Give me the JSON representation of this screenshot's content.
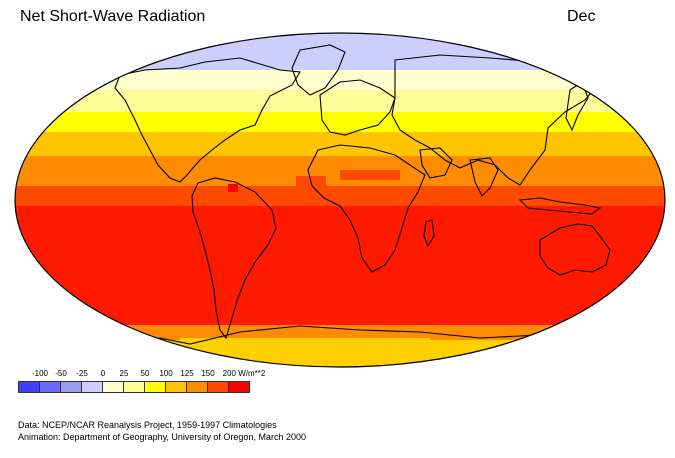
{
  "header": {
    "title": "Net Short-Wave Radiation",
    "month": "Dec"
  },
  "legend": {
    "labels": [
      "-100",
      "-50",
      "-25",
      "0",
      "25",
      "50",
      "100",
      "125",
      "150",
      "200 W/m**2"
    ],
    "colors": [
      "#3f3fff",
      "#6a6aff",
      "#9a9af0",
      "#cccffc",
      "#ffffd0",
      "#fdfd98",
      "#ffff00",
      "#ffc400",
      "#ff8c00",
      "#ff4a00",
      "#ff0000"
    ]
  },
  "credits": {
    "line1": "Data:  NCEP/NCAR Reanalysis Project, 1959-1997 Climatologies",
    "line2": "Animation:  Department of Geography, University of Oregon, March 2000"
  }
}
